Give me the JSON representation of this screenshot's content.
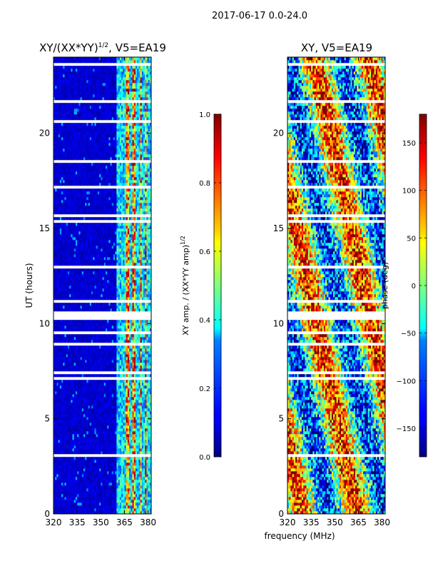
{
  "figure": {
    "suptitle": "2017-06-17 0.0-24.0",
    "shared_xlabel": "frequency (MHz)"
  },
  "chart_data": [
    {
      "type": "heatmap",
      "title_main": "XY/(XX*YY)",
      "title_sup": "1/2",
      "title_tail": ", V5=EA19",
      "xlim": [
        320,
        382
      ],
      "ylim": [
        0,
        24
      ],
      "ylabel": "UT (hours)",
      "xticks": [
        320,
        335,
        350,
        365,
        380
      ],
      "yticks": [
        0,
        5,
        10,
        15,
        20
      ],
      "colorbar": {
        "range": [
          0.0,
          1.0
        ],
        "ticks": [
          "0.0",
          "0.2",
          "0.4",
          "0.6",
          "0.8",
          "1.0"
        ],
        "tick_values": [
          0.0,
          0.2,
          0.4,
          0.6,
          0.8,
          1.0
        ],
        "label_main": "XY amp. / (XX*YY amp)",
        "label_sup": "1/2",
        "colormap": "jet"
      }
    },
    {
      "type": "heatmap",
      "title_main": "XY, V5=EA19",
      "xlim": [
        320,
        382
      ],
      "ylim": [
        0,
        24
      ],
      "xticks": [
        320,
        335,
        350,
        365,
        380
      ],
      "yticks": [
        0,
        5,
        10,
        15,
        20
      ],
      "colorbar": {
        "range": [
          -180,
          180
        ],
        "ticks": [
          "150",
          "100",
          "50",
          "0",
          "−50",
          "−100",
          "−150"
        ],
        "tick_values": [
          150,
          100,
          50,
          0,
          -50,
          -100,
          -150
        ],
        "label": "phase (deg)",
        "colormap": "jet"
      }
    }
  ]
}
